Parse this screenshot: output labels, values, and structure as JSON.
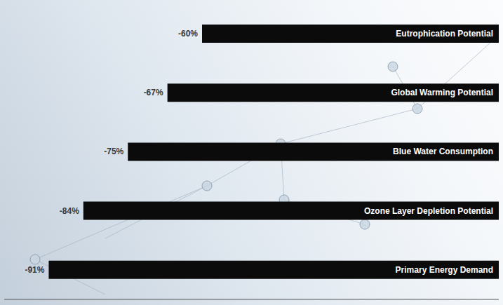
{
  "chart_data": {
    "type": "bar",
    "orientation": "horizontal",
    "categories": [
      "Eutrophication Potential",
      "Global Warming Potential",
      "Blue Water Consumption",
      "Ozone Layer Depletion Potential",
      "Primary Energy Demand"
    ],
    "values": [
      -60,
      -67,
      -75,
      -84,
      -91
    ],
    "value_labels": [
      "-60%",
      "-67%",
      "-75%",
      "-84%",
      "-91%"
    ],
    "color": "#0b0b0b",
    "xlim": [
      -100,
      0
    ],
    "xticks": [
      -100,
      0
    ],
    "tick_labels": false,
    "data_labels": true,
    "grid": false
  }
}
